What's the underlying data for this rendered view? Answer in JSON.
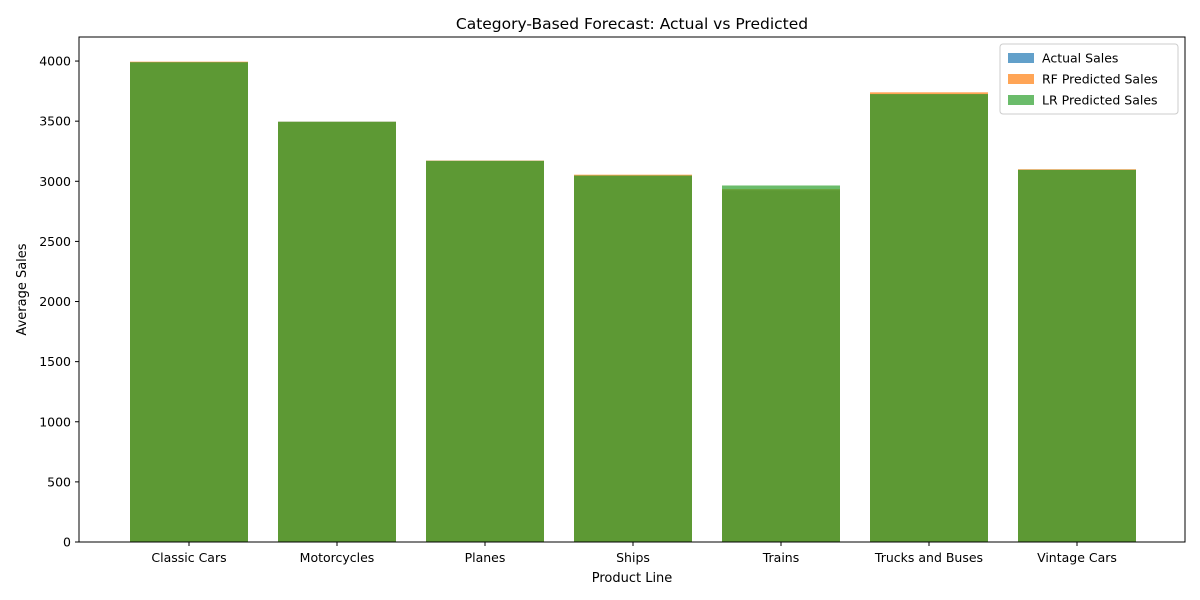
{
  "chart_data": {
    "type": "bar",
    "title": "Category-Based Forecast: Actual vs Predicted",
    "xlabel": "Product Line",
    "ylabel": "Average Sales",
    "categories": [
      "Classic Cars",
      "Motorcycles",
      "Planes",
      "Ships",
      "Trains",
      "Trucks and Buses",
      "Vintage Cars"
    ],
    "series": [
      {
        "name": "Actual Sales",
        "color": "#1f77b4",
        "values": [
          3990,
          3495,
          3170,
          3045,
          2925,
          3725,
          3095
        ]
      },
      {
        "name": "RF Predicted Sales",
        "color": "#ff7f0e",
        "values": [
          3995,
          3495,
          3172,
          3055,
          2935,
          3740,
          3100
        ]
      },
      {
        "name": "LR Predicted Sales",
        "color": "#2ca02c",
        "values": [
          3990,
          3495,
          3170,
          3048,
          2965,
          3725,
          3095
        ]
      }
    ],
    "ylim": [
      0,
      4200
    ],
    "yticks": [
      0,
      500,
      1000,
      1500,
      2000,
      2500,
      3000,
      3500,
      4000
    ],
    "bar_alpha": 0.7,
    "grid": false,
    "legend": "top-right"
  }
}
